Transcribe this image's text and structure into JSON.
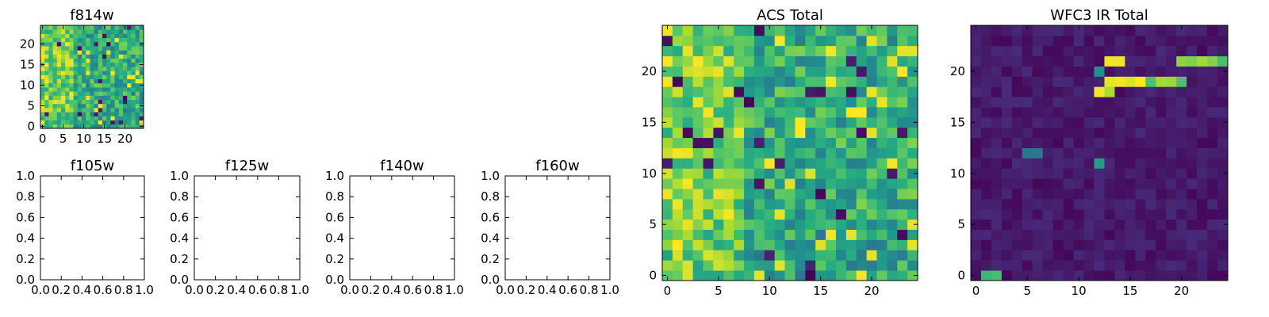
{
  "chart_data": [
    {
      "id": "f814w",
      "type": "heatmap",
      "title": "f814w",
      "grid_size": 25,
      "colormap": "viridis",
      "xlim": [
        -0.5,
        24.5
      ],
      "ylim": [
        -0.5,
        24.5
      ],
      "xticks": [
        0,
        5,
        10,
        15,
        20
      ],
      "xtick_labels": [
        "0",
        "5",
        "10",
        "15",
        "20"
      ],
      "yticks": [
        0,
        5,
        10,
        15,
        20
      ],
      "ytick_labels": [
        "0",
        "5",
        "10",
        "15",
        "20"
      ],
      "pattern": "acs"
    },
    {
      "id": "f105w",
      "type": "heatmap",
      "title": "f105w",
      "empty": true,
      "xlim": [
        0,
        1
      ],
      "ylim": [
        0,
        1
      ],
      "xticks": [
        0,
        0.2,
        0.4,
        0.6,
        0.8,
        1.0
      ],
      "xtick_labels": [
        "0.0",
        "0.2",
        "0.4",
        "0.6",
        "0.8",
        "1.0"
      ],
      "yticks": [
        0,
        0.2,
        0.4,
        0.6,
        0.8,
        1.0
      ],
      "ytick_labels": [
        "0.0",
        "0.2",
        "0.4",
        "0.6",
        "0.8",
        "1.0"
      ]
    },
    {
      "id": "f125w",
      "type": "heatmap",
      "title": "f125w",
      "empty": true,
      "xlim": [
        0,
        1
      ],
      "ylim": [
        0,
        1
      ],
      "xticks": [
        0,
        0.2,
        0.4,
        0.6,
        0.8,
        1.0
      ],
      "xtick_labels": [
        "0.0",
        "0.2",
        "0.4",
        "0.6",
        "0.8",
        "1.0"
      ],
      "yticks": [
        0,
        0.2,
        0.4,
        0.6,
        0.8,
        1.0
      ],
      "ytick_labels": [
        "0.0",
        "0.2",
        "0.4",
        "0.6",
        "0.8",
        "1.0"
      ]
    },
    {
      "id": "f140w",
      "type": "heatmap",
      "title": "f140w",
      "empty": true,
      "xlim": [
        0,
        1
      ],
      "ylim": [
        0,
        1
      ],
      "xticks": [
        0,
        0.2,
        0.4,
        0.6,
        0.8,
        1.0
      ],
      "xtick_labels": [
        "0.0",
        "0.2",
        "0.4",
        "0.6",
        "0.8",
        "1.0"
      ],
      "yticks": [
        0,
        0.2,
        0.4,
        0.6,
        0.8,
        1.0
      ],
      "ytick_labels": [
        "0.0",
        "0.2",
        "0.4",
        "0.6",
        "0.8",
        "1.0"
      ]
    },
    {
      "id": "f160w",
      "type": "heatmap",
      "title": "f160w",
      "empty": true,
      "xlim": [
        0,
        1
      ],
      "ylim": [
        0,
        1
      ],
      "xticks": [
        0,
        0.2,
        0.4,
        0.6,
        0.8,
        1.0
      ],
      "xtick_labels": [
        "0.0",
        "0.2",
        "0.4",
        "0.6",
        "0.8",
        "1.0"
      ],
      "yticks": [
        0,
        0.2,
        0.4,
        0.6,
        0.8,
        1.0
      ],
      "ytick_labels": [
        "0.0",
        "0.2",
        "0.4",
        "0.6",
        "0.8",
        "1.0"
      ]
    },
    {
      "id": "acs_total",
      "type": "heatmap",
      "title": "ACS Total",
      "grid_size": 25,
      "colormap": "viridis",
      "xlim": [
        -0.5,
        24.5
      ],
      "ylim": [
        -0.5,
        24.5
      ],
      "xticks": [
        0,
        5,
        10,
        15,
        20
      ],
      "xtick_labels": [
        "0",
        "5",
        "10",
        "15",
        "20"
      ],
      "yticks": [
        0,
        5,
        10,
        15,
        20
      ],
      "ytick_labels": [
        "0",
        "5",
        "10",
        "15",
        "20"
      ],
      "pattern": "acs"
    },
    {
      "id": "wfc3_ir_total",
      "type": "heatmap",
      "title": "WFC3 IR Total",
      "grid_size": 25,
      "colormap": "viridis",
      "xlim": [
        -0.5,
        24.5
      ],
      "ylim": [
        -0.5,
        24.5
      ],
      "xticks": [
        0,
        5,
        10,
        15,
        20
      ],
      "xtick_labels": [
        "0",
        "5",
        "10",
        "15",
        "20"
      ],
      "yticks": [
        0,
        5,
        10,
        15,
        20
      ],
      "ytick_labels": [
        "0",
        "5",
        "10",
        "15",
        "20"
      ],
      "pattern": "ir"
    }
  ]
}
